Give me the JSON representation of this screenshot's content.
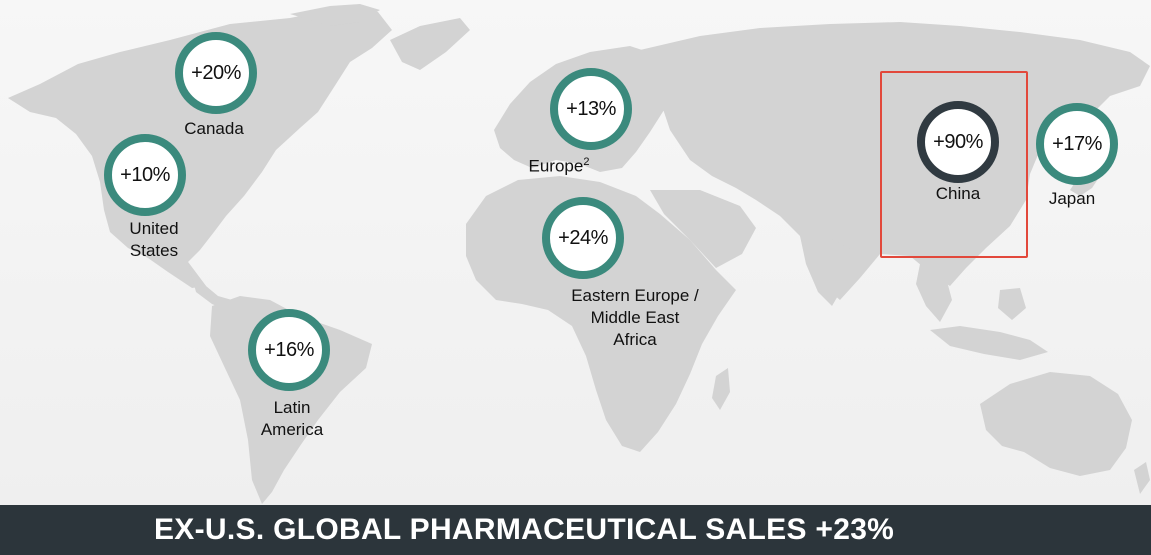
{
  "banner": {
    "title": "EX-U.S. GLOBAL PHARMACEUTICAL SALES +23%"
  },
  "colors": {
    "marker": "#3b8a7d",
    "marker_highlight": "#303a41",
    "highlight_box": "#e2483b",
    "land": "#d3d3d3",
    "banner": "#2c353b"
  },
  "regions": [
    {
      "id": "canada",
      "value": "+20%",
      "label": "Canada",
      "highlight": false
    },
    {
      "id": "united-states",
      "value": "+10%",
      "label": "United\nStates",
      "highlight": false
    },
    {
      "id": "latin-america",
      "value": "+16%",
      "label": "Latin\nAmerica",
      "highlight": false
    },
    {
      "id": "europe",
      "value": "+13%",
      "label": "Europe",
      "label_sup": "2",
      "highlight": false
    },
    {
      "id": "eemea",
      "value": "+24%",
      "label": "Eastern Europe /\nMiddle East\nAfrica",
      "highlight": false
    },
    {
      "id": "china",
      "value": "+90%",
      "label": "China",
      "highlight": true
    },
    {
      "id": "japan",
      "value": "+17%",
      "label": "Japan",
      "highlight": false
    }
  ]
}
